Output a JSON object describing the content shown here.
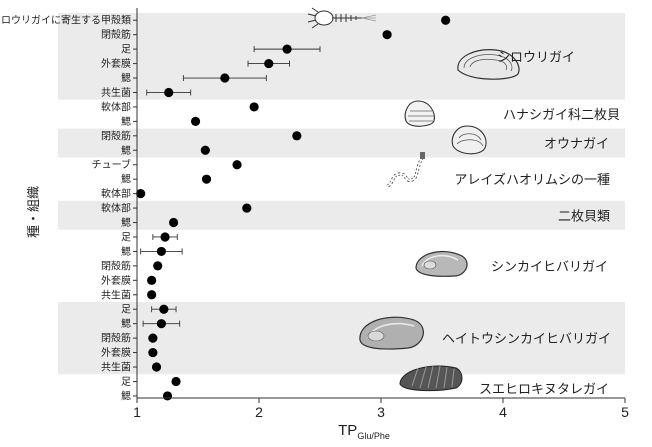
{
  "chart_data": {
    "type": "scatter",
    "xlabel": "TP",
    "xlabel_subscript": "Glu/Phe",
    "ylabel": "種・組織",
    "xlim": [
      1,
      5
    ],
    "xticks": [
      "1",
      "2",
      "3",
      "4",
      "5"
    ],
    "rows": [
      {
        "label": "シロウリガイに寄生する甲殻類",
        "value": 3.53,
        "err": null
      },
      {
        "label": "閉殻筋",
        "value": 3.05,
        "err": null
      },
      {
        "label": "足",
        "value": 2.23,
        "err": 0.27
      },
      {
        "label": "外套膜",
        "value": 2.08,
        "err": 0.17
      },
      {
        "label": "鰓",
        "value": 1.72,
        "err": 0.34
      },
      {
        "label": "共生菌",
        "value": 1.26,
        "err": 0.18
      },
      {
        "label": "軟体部",
        "value": 1.96,
        "err": null
      },
      {
        "label": "鰓",
        "value": 1.48,
        "err": null
      },
      {
        "label": "閉殻筋",
        "value": 2.31,
        "err": null
      },
      {
        "label": "鰓",
        "value": 1.56,
        "err": null
      },
      {
        "label": "チューブ",
        "value": 1.82,
        "err": null
      },
      {
        "label": "鰓",
        "value": 1.57,
        "err": null
      },
      {
        "label": "軟体部",
        "value": 1.03,
        "err": null
      },
      {
        "label": "軟体部",
        "value": 1.9,
        "err": null
      },
      {
        "label": "鰓",
        "value": 1.3,
        "err": null
      },
      {
        "label": "足",
        "value": 1.23,
        "err": 0.1
      },
      {
        "label": "鰓",
        "value": 1.2,
        "err": 0.17
      },
      {
        "label": "閉殻筋",
        "value": 1.17,
        "err": null
      },
      {
        "label": "外套膜",
        "value": 1.12,
        "err": null
      },
      {
        "label": "共生菌",
        "value": 1.12,
        "err": null
      },
      {
        "label": "足",
        "value": 1.22,
        "err": 0.1
      },
      {
        "label": "鰓",
        "value": 1.2,
        "err": 0.15
      },
      {
        "label": "閉殻筋",
        "value": 1.13,
        "err": null
      },
      {
        "label": "外套膜",
        "value": 1.13,
        "err": null
      },
      {
        "label": "共生菌",
        "value": 1.16,
        "err": null
      },
      {
        "label": "足",
        "value": 1.32,
        "err": null
      },
      {
        "label": "鰓",
        "value": 1.25,
        "err": null
      }
    ],
    "groups": [
      {
        "name": "シロウリガイ",
        "rows": [
          0,
          5
        ],
        "shaded": true,
        "icon": "calyptogena-shell-icon"
      },
      {
        "name": "ハナシガイ科二枚貝",
        "rows": [
          6,
          7
        ],
        "shaded": false,
        "icon": "thyasirid-shell-icon"
      },
      {
        "name": "オウナガイ",
        "rows": [
          8,
          9
        ],
        "shaded": true,
        "icon": "conchocele-shell-icon"
      },
      {
        "name": "アレイズハオリムシの一種",
        "rows": [
          10,
          12
        ],
        "shaded": false,
        "icon": "tubeworm-icon"
      },
      {
        "name": "二枚貝類",
        "rows": [
          13,
          14
        ],
        "shaded": true,
        "icon": ""
      },
      {
        "name": "シンカイヒバリガイ",
        "rows": [
          15,
          19
        ],
        "shaded": false,
        "icon": "mussel-shell-icon"
      },
      {
        "name": "ヘイトウシンカイヒバリガイ",
        "rows": [
          20,
          24
        ],
        "shaded": true,
        "icon": "mussel-shell-icon"
      },
      {
        "name": "スエヒロキヌタレガイ",
        "rows": [
          25,
          26
        ],
        "shaded": false,
        "icon": "solemya-shell-icon"
      }
    ],
    "grid": false,
    "legend": "none"
  }
}
